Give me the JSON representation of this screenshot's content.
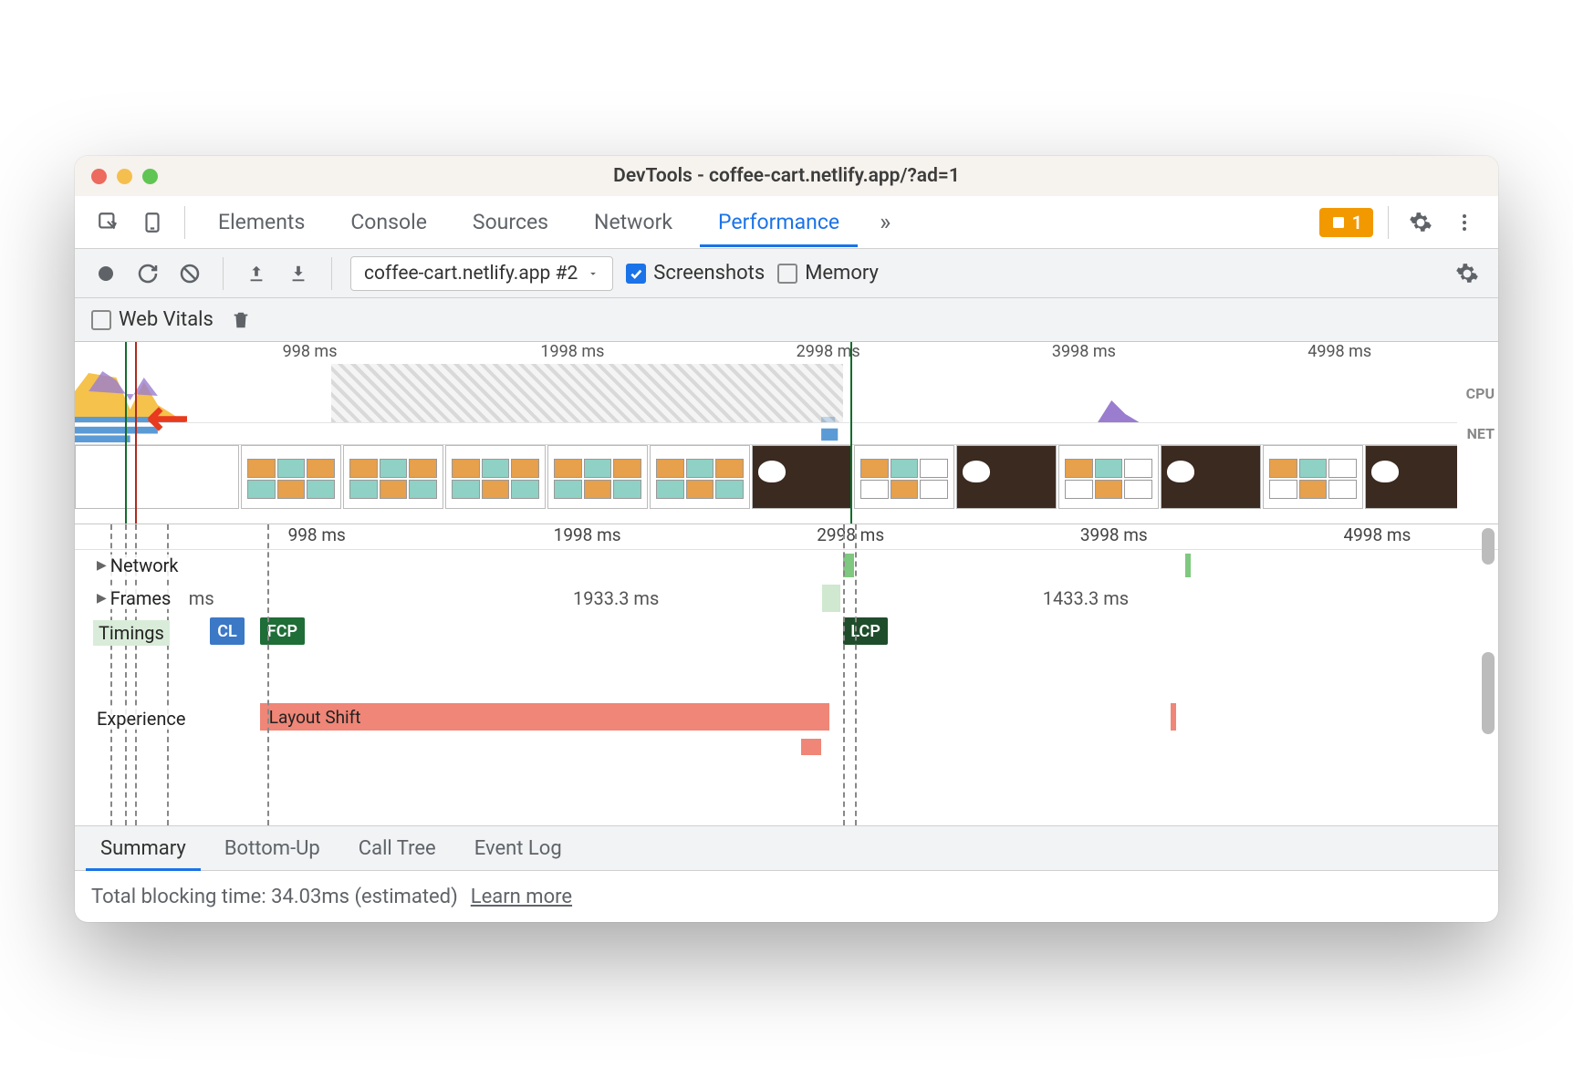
{
  "window": {
    "title": "DevTools - coffee-cart.netlify.app/?ad=1",
    "traffic_colors": [
      "#ed6a5e",
      "#f5bf4f",
      "#61c554"
    ]
  },
  "tabs": {
    "items": [
      "Elements",
      "Console",
      "Sources",
      "Network",
      "Performance"
    ],
    "active_index": 4,
    "overflow_glyph": "»",
    "issues_count": "1"
  },
  "toolbar": {
    "recording_label": "coffee-cart.netlify.app #2",
    "screenshots_label": "Screenshots",
    "screenshots_checked": true,
    "memory_label": "Memory",
    "memory_checked": false
  },
  "toolbar2": {
    "web_vitals_label": "Web Vitals",
    "web_vitals_checked": false
  },
  "overview": {
    "time_labels": [
      "998 ms",
      "1998 ms",
      "2998 ms",
      "3998 ms",
      "4998 ms"
    ],
    "time_positions_pct": [
      17,
      36,
      54.5,
      73,
      91.5
    ],
    "cpu_label": "CPU",
    "net_label": "NET",
    "markers": [
      {
        "pos_pct": 3.5,
        "color": "#126d2b"
      },
      {
        "pos_pct": 4.2,
        "color": "#b02a1e"
      },
      {
        "pos_pct": 54.5,
        "color": "#126d2b"
      }
    ],
    "hatch_start_pct": 18,
    "hatch_end_pct": 54,
    "colors": {
      "script": "#f5c24b",
      "layout": "#9a7dcf",
      "paint": "#6fb96f",
      "idle": "#e6e6e6"
    }
  },
  "filmstrip": {
    "thumbs": [
      {
        "type": "blank"
      },
      {
        "type": "grid",
        "fills": [
          "#e7a04b",
          "#8fd1c5",
          "#e7a04b",
          "#8fd1c5",
          "#e7a04b",
          "#8fd1c5"
        ]
      },
      {
        "type": "grid",
        "fills": [
          "#e7a04b",
          "#8fd1c5",
          "#e7a04b",
          "#8fd1c5",
          "#e7a04b",
          "#8fd1c5"
        ]
      },
      {
        "type": "grid",
        "fills": [
          "#e7a04b",
          "#8fd1c5",
          "#e7a04b",
          "#8fd1c5",
          "#e7a04b",
          "#8fd1c5"
        ]
      },
      {
        "type": "grid",
        "fills": [
          "#e7a04b",
          "#8fd1c5",
          "#e7a04b",
          "#8fd1c5",
          "#e7a04b",
          "#8fd1c5"
        ]
      },
      {
        "type": "grid",
        "fills": [
          "#e7a04b",
          "#8fd1c5",
          "#e7a04b",
          "#8fd1c5",
          "#e7a04b",
          "#8fd1c5"
        ]
      },
      {
        "type": "dark"
      },
      {
        "type": "grid",
        "fills": [
          "#e7a04b",
          "#8fd1c5",
          "#fff",
          "#fff",
          "#e7a04b",
          "#fff"
        ]
      },
      {
        "type": "dark"
      },
      {
        "type": "grid",
        "fills": [
          "#e7a04b",
          "#8fd1c5",
          "#fff",
          "#fff",
          "#e7a04b",
          "#fff"
        ]
      },
      {
        "type": "dark"
      },
      {
        "type": "grid",
        "fills": [
          "#e7a04b",
          "#8fd1c5",
          "#fff",
          "#fff",
          "#e7a04b",
          "#fff"
        ]
      },
      {
        "type": "dark"
      },
      {
        "type": "grid",
        "fills": [
          "#e7a04b",
          "#8fd1c5",
          "#fff",
          "#fff",
          "#e7a04b",
          "#fff"
        ]
      }
    ]
  },
  "flame": {
    "ruler_labels": [
      "998 ms",
      "1998 ms",
      "2998 ms",
      "3998 ms",
      "4998 ms"
    ],
    "ruler_positions_pct": [
      17,
      36,
      54.5,
      73,
      91.5
    ],
    "network_label": "Network",
    "frames_label": "Frames",
    "frames_values": [
      {
        "text": "ms",
        "pos_pct": 8
      },
      {
        "text": "1933.3 ms",
        "pos_pct": 35
      },
      {
        "text": "1433.3 ms",
        "pos_pct": 68
      }
    ],
    "timings_label": "Timings",
    "timings_chips": [
      {
        "text": "CL",
        "pos_pct": 9.5,
        "color": "#3b78c6"
      },
      {
        "text": "FCP",
        "pos_pct": 13,
        "color": "#1f6d37"
      },
      {
        "text": "LCP",
        "pos_pct": 54,
        "color": "#1f4d2b"
      }
    ],
    "experience_label": "Experience",
    "layout_shift_label": "Layout Shift",
    "layout_shift_start_pct": 13,
    "layout_shift_end_pct": 53,
    "layout_shift_color": "#ef8677",
    "extra_block_pct": 77,
    "dashed_positions_pct": [
      2.5,
      3.5,
      4.2,
      6.5,
      13.5,
      54,
      54.8
    ]
  },
  "details_tabs": {
    "items": [
      "Summary",
      "Bottom-Up",
      "Call Tree",
      "Event Log"
    ],
    "active_index": 0
  },
  "footer": {
    "tbt_label": "Total blocking time: 34.03ms (estimated)",
    "learn_more": "Learn more"
  }
}
